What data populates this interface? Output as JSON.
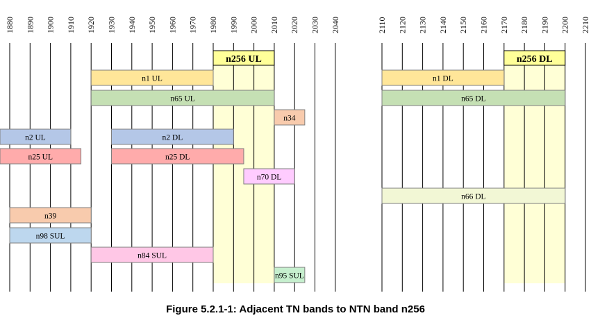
{
  "figure": {
    "caption": "Figure 5.2.1-1: Adjacent TN bands to NTN band n256"
  },
  "left_axis_ticks": [
    "1880",
    "1890",
    "1900",
    "1910",
    "1920",
    "1930",
    "1940",
    "1950",
    "1960",
    "1970",
    "1980",
    "1990",
    "2000",
    "2010",
    "2020",
    "2030",
    "2040"
  ],
  "right_axis_ticks": [
    "2110",
    "2120",
    "2130",
    "2140",
    "2150",
    "2160",
    "2170",
    "2180",
    "2190",
    "2200",
    "2210"
  ],
  "highlights": [
    {
      "label": "n256 UL",
      "panel": "left",
      "from": 1980,
      "to": 2010
    },
    {
      "label": "n256 DL",
      "panel": "right",
      "from": 2170,
      "to": 2200
    }
  ],
  "bands": [
    {
      "label": "n1 UL",
      "panel": "left",
      "from": 1920,
      "to": 1980,
      "row": 1,
      "color": "#FFE699"
    },
    {
      "label": "n1 DL",
      "panel": "right",
      "from": 2110,
      "to": 2170,
      "row": 1,
      "color": "#FFE699"
    },
    {
      "label": "n65 UL",
      "panel": "left",
      "from": 1920,
      "to": 2010,
      "row": 2,
      "color": "#C5E0B4"
    },
    {
      "label": "n65 DL",
      "panel": "right",
      "from": 2110,
      "to": 2200,
      "row": 2,
      "color": "#C5E0B4"
    },
    {
      "label": "n34",
      "panel": "left",
      "from": 2010,
      "to": 2025,
      "row": 3,
      "color": "#F8CBAD"
    },
    {
      "label": "n2 UL",
      "panel": "left",
      "from": 1850,
      "to": 1910,
      "row": 4,
      "color": "#B4C7E7"
    },
    {
      "label": "n2 DL",
      "panel": "left",
      "from": 1930,
      "to": 1990,
      "row": 4,
      "color": "#B4C7E7"
    },
    {
      "label": "n25 UL",
      "panel": "left",
      "from": 1850,
      "to": 1915,
      "row": 5,
      "color": "#FFABAB"
    },
    {
      "label": "n25 DL",
      "panel": "left",
      "from": 1930,
      "to": 1995,
      "row": 5,
      "color": "#FFABAB"
    },
    {
      "label": "n70 DL",
      "panel": "left",
      "from": 1995,
      "to": 2020,
      "row": 6,
      "color": "#FFCCFF"
    },
    {
      "label": "n66 DL",
      "panel": "right",
      "from": 2110,
      "to": 2200,
      "row": 7,
      "color": "#F2F7D5"
    },
    {
      "label": "n39",
      "panel": "left",
      "from": 1880,
      "to": 1920,
      "row": 8,
      "color": "#F8CBAD"
    },
    {
      "label": "n98 SUL",
      "panel": "left",
      "from": 1880,
      "to": 1920,
      "row": 9,
      "color": "#BDD7EE"
    },
    {
      "label": "n84 SUL",
      "panel": "left",
      "from": 1920,
      "to": 1980,
      "row": 10,
      "color": "#FFC7E6"
    },
    {
      "label": "n95 SUL",
      "panel": "left",
      "from": 2010,
      "to": 2025,
      "row": 11,
      "color": "#C6EFCE"
    }
  ],
  "colors": {
    "highlight_fill": "#FFFFD6",
    "highlight_label_fill": "#FFFF99",
    "grid_line": "#000000",
    "band_border": "#7F7F7F"
  }
}
